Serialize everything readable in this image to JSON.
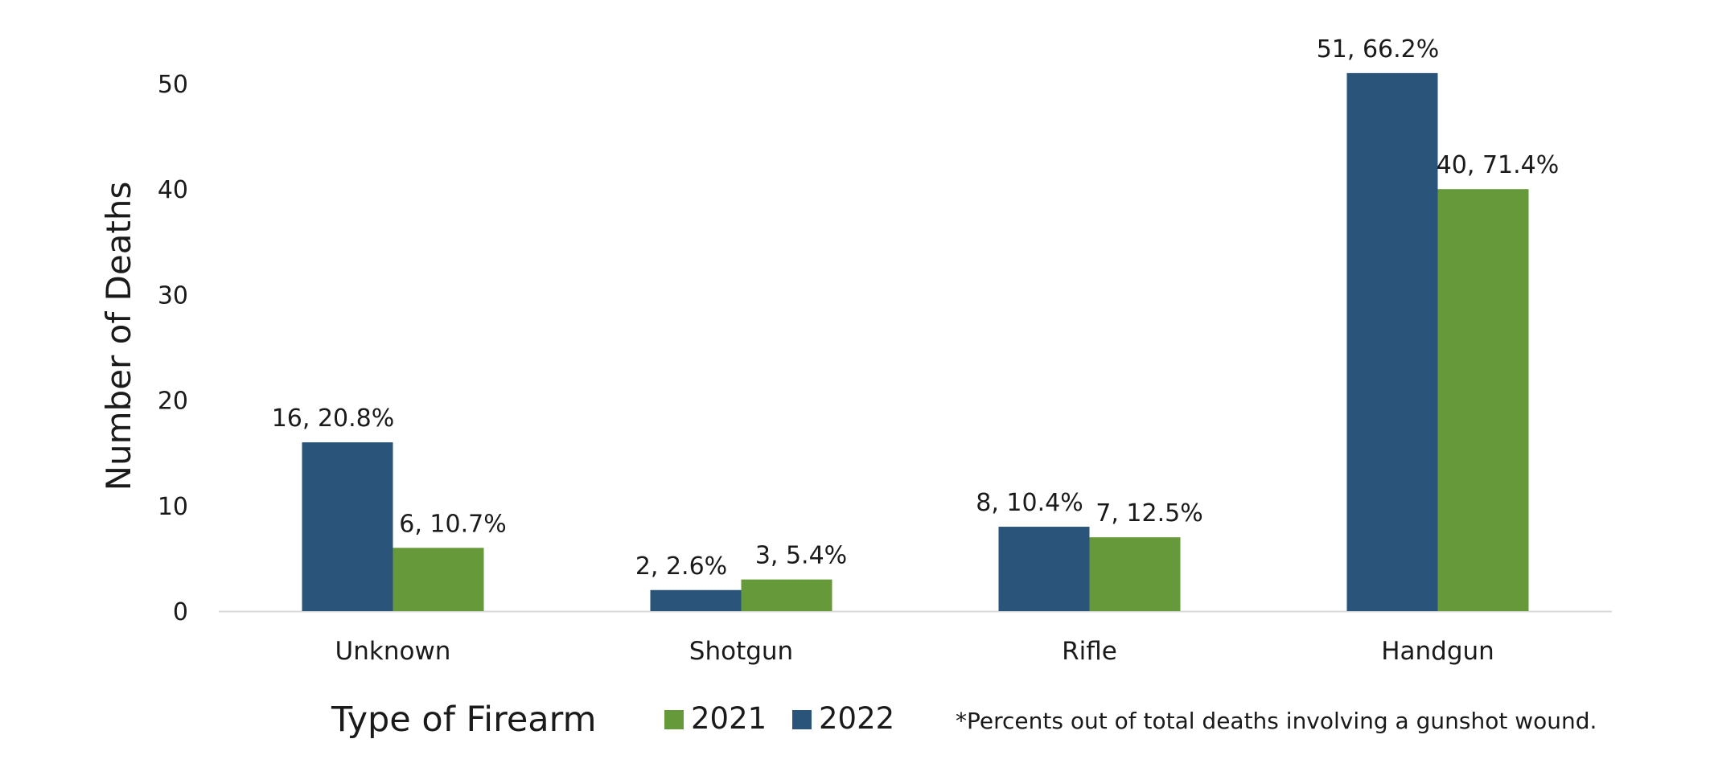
{
  "chart_data": {
    "type": "bar",
    "title": "",
    "xlabel": "Type of Firearm",
    "ylabel": "Number of Deaths",
    "ylim": [
      0,
      50
    ],
    "yticks": [
      0,
      10,
      20,
      30,
      40,
      50
    ],
    "categories": [
      "Unknown",
      "Shotgun",
      "Rifle",
      "Handgun"
    ],
    "series": [
      {
        "name": "2022",
        "color": "#2a5479",
        "values": [
          16,
          2,
          8,
          51
        ],
        "labels": [
          "16, 20.8%",
          "2, 2.6%",
          "8, 10.4%",
          "51, 66.2%"
        ]
      },
      {
        "name": "2021",
        "color": "#66993a",
        "values": [
          6,
          3,
          7,
          40
        ],
        "labels": [
          "6, 10.7%",
          "3, 5.4%",
          "7, 12.5%",
          "40, 71.4%"
        ]
      }
    ],
    "legend": {
      "order": [
        "2021",
        "2022"
      ],
      "placement": "bottom"
    },
    "footnote": "*Percents out of total deaths involving a gunshot wound.",
    "axis_color": "#d9d9d9",
    "grid": false
  }
}
